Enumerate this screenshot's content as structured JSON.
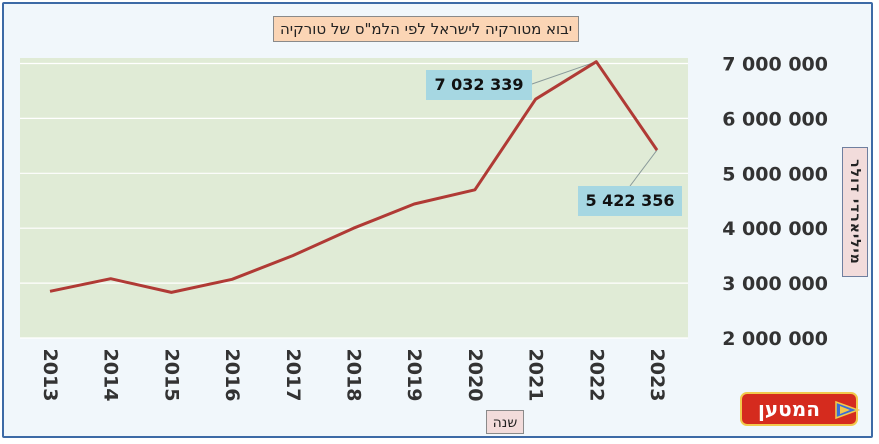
{
  "chart_data": {
    "type": "line",
    "title": "יבוא מטורקיה לישראל לפי הלמ\"ס של טורקיה",
    "xlabel": "שנה",
    "ylabel": "מיליארדי דולר",
    "x": [
      "2013",
      "2014",
      "2015",
      "2016",
      "2017",
      "2018",
      "2019",
      "2020",
      "2021",
      "2022",
      "2023"
    ],
    "series": [
      {
        "values": [
          2850000,
          3080000,
          2830000,
          3070000,
          3500000,
          4000000,
          4440000,
          4700000,
          6350000,
          7032339,
          5422356
        ]
      }
    ],
    "ylim": [
      2000000,
      7100000
    ],
    "yticks": [
      {
        "value": 2000000,
        "label": "2 000 000"
      },
      {
        "value": 3000000,
        "label": "3 000 000"
      },
      {
        "value": 4000000,
        "label": "4 000 000"
      },
      {
        "value": 5000000,
        "label": "5 000 000"
      },
      {
        "value": 6000000,
        "label": "6 000 000"
      },
      {
        "value": 7000000,
        "label": "7 000 000"
      }
    ],
    "annotations": [
      {
        "x": "2022",
        "value": 7032339,
        "label": "7 032 339"
      },
      {
        "x": "2023",
        "value": 5422356,
        "label": "5 422 356"
      }
    ],
    "grid": true,
    "y_axis_side": "right",
    "colors": {
      "line": "#b03a35",
      "plot_bg": "#e0ebd6",
      "label_bg": "#a6d7e2"
    }
  },
  "logo": {
    "text": "המטען"
  }
}
